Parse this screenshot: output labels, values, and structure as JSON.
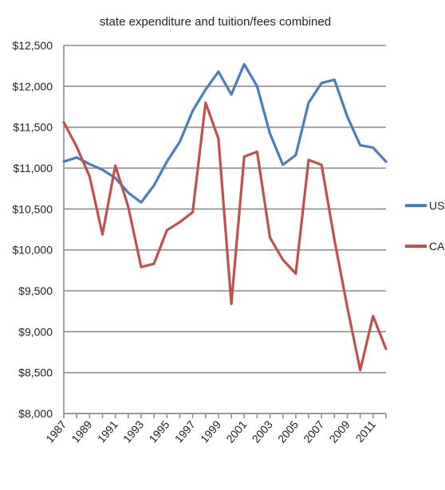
{
  "chart_data": {
    "type": "line",
    "title": "state expenditure and tuition/fees combined",
    "xlabel": "",
    "ylabel": "",
    "ylim": [
      8000,
      12500
    ],
    "y_ticks": [
      "$8,000",
      "$8,500",
      "$9,000",
      "$9,500",
      "$10,000",
      "$10,500",
      "$11,000",
      "$11,500",
      "$12,000",
      "$12,500"
    ],
    "x": [
      1987,
      1988,
      1989,
      1990,
      1991,
      1992,
      1993,
      1994,
      1995,
      1996,
      1997,
      1998,
      1999,
      2000,
      2001,
      2002,
      2003,
      2004,
      2005,
      2006,
      2007,
      2008,
      2009,
      2010,
      2011,
      2012
    ],
    "x_tick_labels": [
      "1987",
      "1989",
      "1991",
      "1993",
      "1995",
      "1997",
      "1999",
      "2001",
      "2003",
      "2005",
      "2007",
      "2009",
      "2011"
    ],
    "grid": true,
    "legend_position": "right",
    "series": [
      {
        "name": "US",
        "color": "#4a7ebb",
        "values": [
          11080,
          11130,
          11050,
          10980,
          10880,
          10700,
          10580,
          10790,
          11080,
          11320,
          11700,
          11960,
          12180,
          11900,
          12270,
          12000,
          11420,
          11040,
          11160,
          11800,
          12040,
          12080,
          11630,
          11280,
          11250,
          11080
        ]
      },
      {
        "name": "CA",
        "color": "#c0504d",
        "values": [
          11560,
          11260,
          10900,
          10190,
          11030,
          10530,
          9790,
          9830,
          10240,
          10340,
          10460,
          11800,
          11360,
          9340,
          11140,
          11200,
          10150,
          9880,
          9710,
          11100,
          11040,
          10120,
          9300,
          8530,
          9190,
          8790
        ]
      }
    ]
  }
}
